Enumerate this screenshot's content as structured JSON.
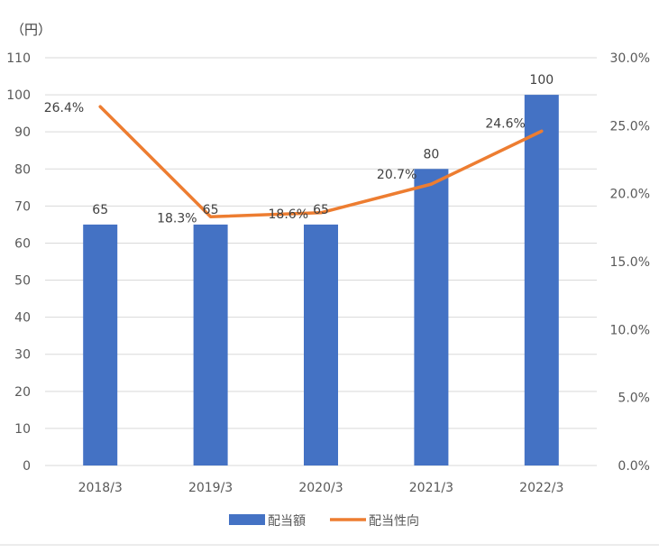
{
  "chart_data": {
    "type": "bar",
    "combo": "bar+line",
    "unit_label": "（円）",
    "categories": [
      "2018/3",
      "2019/3",
      "2020/3",
      "2021/3",
      "2022/3"
    ],
    "series": [
      {
        "name": "配当額",
        "type": "bar",
        "axis": "left",
        "values": [
          65,
          65,
          65,
          80,
          100
        ],
        "labels": [
          "65",
          "65",
          "65",
          "80",
          "100"
        ],
        "color": "#4472C4"
      },
      {
        "name": "配当性向",
        "type": "line",
        "axis": "right",
        "values": [
          0.264,
          0.183,
          0.186,
          0.207,
          0.246
        ],
        "labels": [
          "26.4%",
          "18.3%",
          "18.6%",
          "20.7%",
          "24.6%"
        ],
        "color": "#ED7D31"
      }
    ],
    "y_left": {
      "ylim": [
        0,
        110
      ],
      "ticks": [
        0,
        10,
        20,
        30,
        40,
        50,
        60,
        70,
        80,
        90,
        100,
        110
      ],
      "tick_labels": [
        "0",
        "10",
        "20",
        "30",
        "40",
        "50",
        "60",
        "70",
        "80",
        "90",
        "100",
        "110"
      ]
    },
    "y_right": {
      "ylim": [
        0,
        0.3
      ],
      "ticks": [
        0,
        0.05,
        0.1,
        0.15,
        0.2,
        0.25,
        0.3
      ],
      "tick_labels": [
        "0.0%",
        "5.0%",
        "10.0%",
        "15.0%",
        "20.0%",
        "25.0%",
        "30.0%"
      ]
    },
    "grid": true,
    "legend_position": "bottom",
    "colors": {
      "gridline": "#D9D9D9",
      "axis_text": "#595959"
    }
  }
}
